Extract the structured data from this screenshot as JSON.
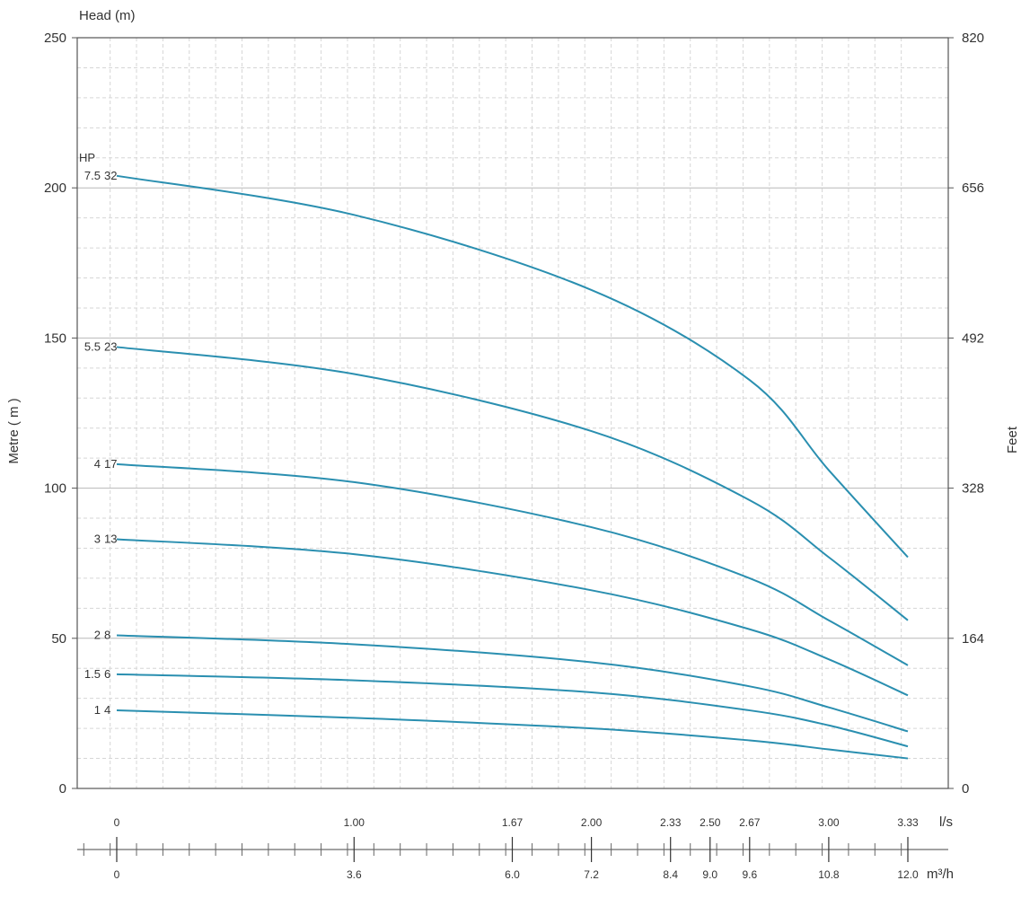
{
  "chart_data": {
    "type": "line",
    "title": "",
    "y_title": "Head (m)",
    "ylabel": "Metre ( m )",
    "y2label": "Feet",
    "ylim": [
      0,
      250
    ],
    "y_ticks": [
      0,
      50,
      100,
      150,
      200,
      250
    ],
    "y2_ticks": [
      "0",
      "164",
      "328",
      "492",
      "656",
      "820"
    ],
    "grid": true,
    "x_units_top": "l/s",
    "x_units_bottom": "m³/h",
    "x_top_ticks": [
      {
        "value": 0,
        "label": "0"
      },
      {
        "value": 1.0,
        "label": "1.00"
      },
      {
        "value": 1.67,
        "label": "1.67"
      },
      {
        "value": 2.0,
        "label": "2.00"
      },
      {
        "value": 2.33,
        "label": "2.33"
      },
      {
        "value": 2.5,
        "label": "2.50"
      },
      {
        "value": 2.67,
        "label": "2.67"
      },
      {
        "value": 3.0,
        "label": "3.00"
      },
      {
        "value": 3.33,
        "label": "3.33"
      }
    ],
    "x_bottom_ticks": [
      {
        "value": 0,
        "label": "0"
      },
      {
        "value": 3.6,
        "label": "3.6"
      },
      {
        "value": 6.0,
        "label": "6.0"
      },
      {
        "value": 7.2,
        "label": "7.2"
      },
      {
        "value": 8.4,
        "label": "8.4"
      },
      {
        "value": 9.0,
        "label": "9.0"
      },
      {
        "value": 9.6,
        "label": "9.6"
      },
      {
        "value": 10.8,
        "label": "10.8"
      },
      {
        "value": 12.0,
        "label": "12.0"
      }
    ],
    "xlim": [
      -0.5,
      12.6
    ],
    "hp_header": "HP",
    "series": [
      {
        "name": "32",
        "hp": "7.5",
        "color": "#2a8fb0",
        "x": [
          0,
          3.6,
          7.2,
          9.6,
          10.8,
          12.0
        ],
        "y": [
          204,
          191,
          166,
          136,
          106,
          77
        ]
      },
      {
        "name": "23",
        "hp": "5.5",
        "color": "#2a8fb0",
        "x": [
          0,
          3.6,
          7.2,
          9.6,
          10.8,
          12.0
        ],
        "y": [
          147,
          138,
          119,
          96,
          77,
          56
        ]
      },
      {
        "name": "17",
        "hp": "4",
        "color": "#2a8fb0",
        "x": [
          0,
          3.6,
          7.2,
          9.6,
          10.8,
          12.0
        ],
        "y": [
          108,
          102,
          87,
          70,
          56,
          41
        ]
      },
      {
        "name": "13",
        "hp": "3",
        "color": "#2a8fb0",
        "x": [
          0,
          3.6,
          7.2,
          9.6,
          10.8,
          12.0
        ],
        "y": [
          83,
          78,
          66,
          53,
          43,
          31
        ]
      },
      {
        "name": "8",
        "hp": "2",
        "color": "#2a8fb0",
        "x": [
          0,
          3.6,
          7.2,
          9.6,
          10.8,
          12.0
        ],
        "y": [
          51,
          48,
          42,
          34,
          27,
          19
        ]
      },
      {
        "name": "6",
        "hp": "1.5",
        "color": "#2a8fb0",
        "x": [
          0,
          3.6,
          7.2,
          9.6,
          10.8,
          12.0
        ],
        "y": [
          38,
          36,
          32,
          26,
          21,
          14
        ]
      },
      {
        "name": "4",
        "hp": "1",
        "color": "#2a8fb0",
        "x": [
          0,
          3.6,
          7.2,
          9.6,
          10.8,
          12.0
        ],
        "y": [
          26,
          23.5,
          20,
          16,
          13,
          10
        ]
      }
    ]
  }
}
